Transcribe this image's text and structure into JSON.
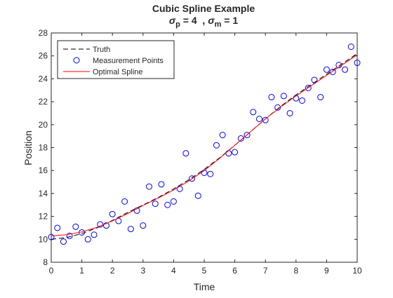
{
  "chart_data": {
    "type": "scatter",
    "title": "Cubic Spline Example",
    "subtitle": {
      "sigma_symbol": "σ",
      "p_sub": "p",
      "p_value": " = 4  ,",
      "m_sub": "m",
      "m_value": " = 1"
    },
    "xlabel": "Time",
    "ylabel": "Position",
    "xlim": [
      0,
      10
    ],
    "ylim": [
      8,
      28
    ],
    "xticks": [
      0,
      1,
      2,
      3,
      4,
      5,
      6,
      7,
      8,
      9,
      10
    ],
    "yticks": [
      8,
      10,
      12,
      14,
      16,
      18,
      20,
      22,
      24,
      26,
      28
    ],
    "grid": false,
    "legend_position": "top-left",
    "legend": [
      "Truth",
      "Measurement Points",
      "Optimal Spline"
    ],
    "series": [
      {
        "name": "Truth",
        "style": "dashed-line",
        "color": "#000000",
        "x": [
          0,
          0.5,
          1,
          1.5,
          2,
          2.5,
          3,
          3.5,
          4,
          4.5,
          5,
          5.5,
          6,
          6.5,
          7,
          7.5,
          8,
          8.5,
          9,
          9.5,
          10
        ],
        "y": [
          10.0,
          10.15,
          10.5,
          11.0,
          11.65,
          12.35,
          13.0,
          13.65,
          14.4,
          15.2,
          16.1,
          17.1,
          18.2,
          19.35,
          20.5,
          21.6,
          22.6,
          23.5,
          24.4,
          25.3,
          26.2
        ]
      },
      {
        "name": "Measurement Points",
        "style": "open-circle",
        "color": "#0000ff",
        "x": [
          0,
          0.2,
          0.4,
          0.6,
          0.8,
          1.0,
          1.2,
          1.4,
          1.6,
          1.8,
          2.0,
          2.2,
          2.4,
          2.6,
          2.8,
          3.0,
          3.2,
          3.4,
          3.6,
          3.8,
          4.0,
          4.2,
          4.4,
          4.6,
          4.8,
          5.0,
          5.2,
          5.4,
          5.6,
          5.8,
          6.0,
          6.2,
          6.4,
          6.6,
          6.8,
          7.0,
          7.2,
          7.4,
          7.6,
          7.8,
          8.0,
          8.2,
          8.4,
          8.6,
          8.8,
          9.0,
          9.2,
          9.4,
          9.6,
          9.8,
          10.0
        ],
        "y": [
          10.2,
          11.0,
          9.8,
          10.3,
          11.1,
          10.6,
          10.0,
          10.4,
          11.3,
          11.2,
          12.2,
          11.6,
          13.3,
          10.9,
          12.5,
          11.2,
          14.6,
          13.1,
          14.8,
          13.0,
          13.3,
          14.4,
          17.5,
          15.3,
          13.8,
          15.8,
          15.7,
          18.2,
          19.1,
          17.5,
          17.6,
          18.8,
          19.1,
          21.1,
          20.5,
          20.4,
          22.4,
          21.5,
          22.5,
          21.0,
          22.3,
          22.1,
          23.2,
          23.9,
          22.4,
          24.8,
          24.6,
          25.2,
          24.8,
          26.8,
          25.4
        ]
      },
      {
        "name": "Optimal Spline",
        "style": "solid-line",
        "color": "#ff0000",
        "x": [
          0,
          0.5,
          1,
          1.5,
          2,
          2.5,
          3,
          3.5,
          4,
          4.5,
          5,
          5.5,
          6,
          6.5,
          7,
          7.5,
          8,
          8.5,
          9,
          9.5,
          10
        ],
        "y": [
          10.3,
          10.4,
          10.65,
          11.05,
          11.6,
          12.25,
          12.95,
          13.6,
          14.3,
          15.1,
          16.0,
          17.05,
          18.2,
          19.35,
          20.5,
          21.55,
          22.5,
          23.4,
          24.3,
          25.2,
          26.1
        ]
      }
    ]
  }
}
